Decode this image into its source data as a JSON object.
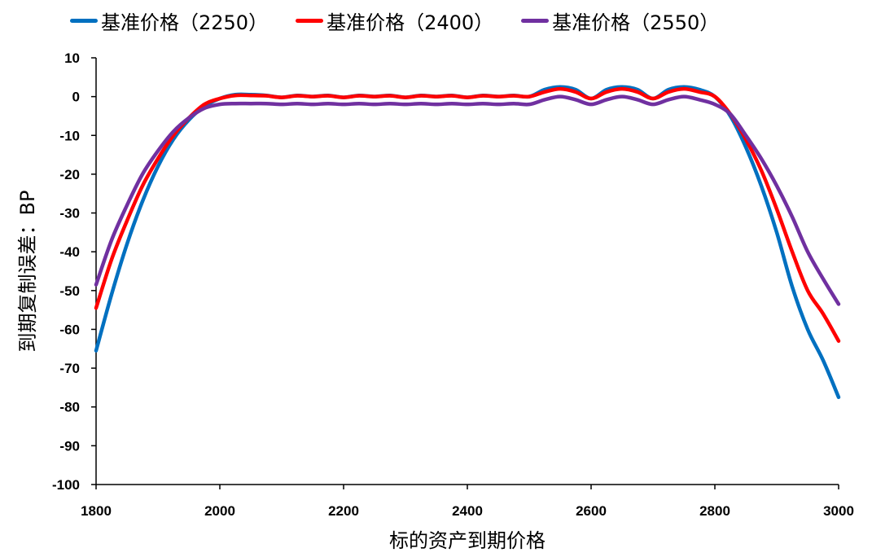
{
  "chart_data": {
    "type": "line",
    "title": "",
    "xlabel": "标的资产到期价格",
    "ylabel": "到期复制误差：BP",
    "xlim": [
      1800,
      3000
    ],
    "ylim": [
      -100,
      10
    ],
    "xticks": [
      1800,
      2000,
      2200,
      2400,
      2600,
      2800,
      3000
    ],
    "yticks": [
      10,
      0,
      -10,
      -20,
      -30,
      -40,
      -50,
      -60,
      -70,
      -80,
      -90,
      -100
    ],
    "legend_position": "top",
    "grid": false,
    "x": [
      1800,
      1825,
      1850,
      1875,
      1900,
      1925,
      1950,
      1975,
      2000,
      2025,
      2050,
      2075,
      2100,
      2125,
      2150,
      2175,
      2200,
      2225,
      2250,
      2275,
      2300,
      2325,
      2350,
      2375,
      2400,
      2425,
      2450,
      2475,
      2500,
      2525,
      2550,
      2575,
      2600,
      2625,
      2650,
      2675,
      2700,
      2725,
      2750,
      2775,
      2800,
      2825,
      2850,
      2875,
      2900,
      2925,
      2950,
      2975,
      3000
    ],
    "series": [
      {
        "name": "基准价格（2250）",
        "color": "#0070C0",
        "values": [
          -65.5,
          -51,
          -38,
          -27,
          -18,
          -11,
          -6,
          -2.5,
          -0.5,
          0.5,
          0.5,
          0.3,
          -0.2,
          0.3,
          0,
          0.3,
          -0.2,
          0.3,
          0,
          0.3,
          -0.2,
          0.3,
          0,
          0.3,
          -0.2,
          0.3,
          0,
          0.3,
          0,
          1.8,
          2.5,
          1.8,
          -0.5,
          1.8,
          2.5,
          1.8,
          -0.5,
          1.8,
          2.5,
          1.8,
          0,
          -5,
          -13,
          -23,
          -35,
          -49,
          -60,
          -68,
          -77.5
        ]
      },
      {
        "name": "基准价格（2400）",
        "color": "#FF0000",
        "values": [
          -54.5,
          -42,
          -32,
          -23,
          -16,
          -10,
          -5.5,
          -2,
          -0.5,
          0.3,
          0.3,
          0.2,
          -0.2,
          0.2,
          0,
          0.2,
          -0.2,
          0.2,
          0,
          0.2,
          -0.2,
          0.2,
          0,
          0.2,
          -0.2,
          0.2,
          0,
          0.2,
          0,
          1.2,
          2,
          1.2,
          -0.5,
          1.2,
          2,
          1.2,
          -0.5,
          1.2,
          2,
          1.2,
          0,
          -4.5,
          -11,
          -19,
          -29,
          -40,
          -50,
          -56,
          -63
        ]
      },
      {
        "name": "基准价格（2550）",
        "color": "#7030A0",
        "values": [
          -48.5,
          -37,
          -28,
          -20,
          -14,
          -9,
          -5.5,
          -3,
          -2,
          -1.8,
          -1.8,
          -1.8,
          -2,
          -1.8,
          -2,
          -1.8,
          -2,
          -1.8,
          -2,
          -1.8,
          -2,
          -1.8,
          -2,
          -1.8,
          -2,
          -1.8,
          -2,
          -1.8,
          -2,
          -0.8,
          0,
          -0.8,
          -2,
          -0.8,
          0,
          -0.8,
          -2,
          -0.8,
          0,
          -0.8,
          -2,
          -4.5,
          -10,
          -16,
          -23,
          -31,
          -40,
          -47,
          -53.5
        ]
      }
    ]
  }
}
